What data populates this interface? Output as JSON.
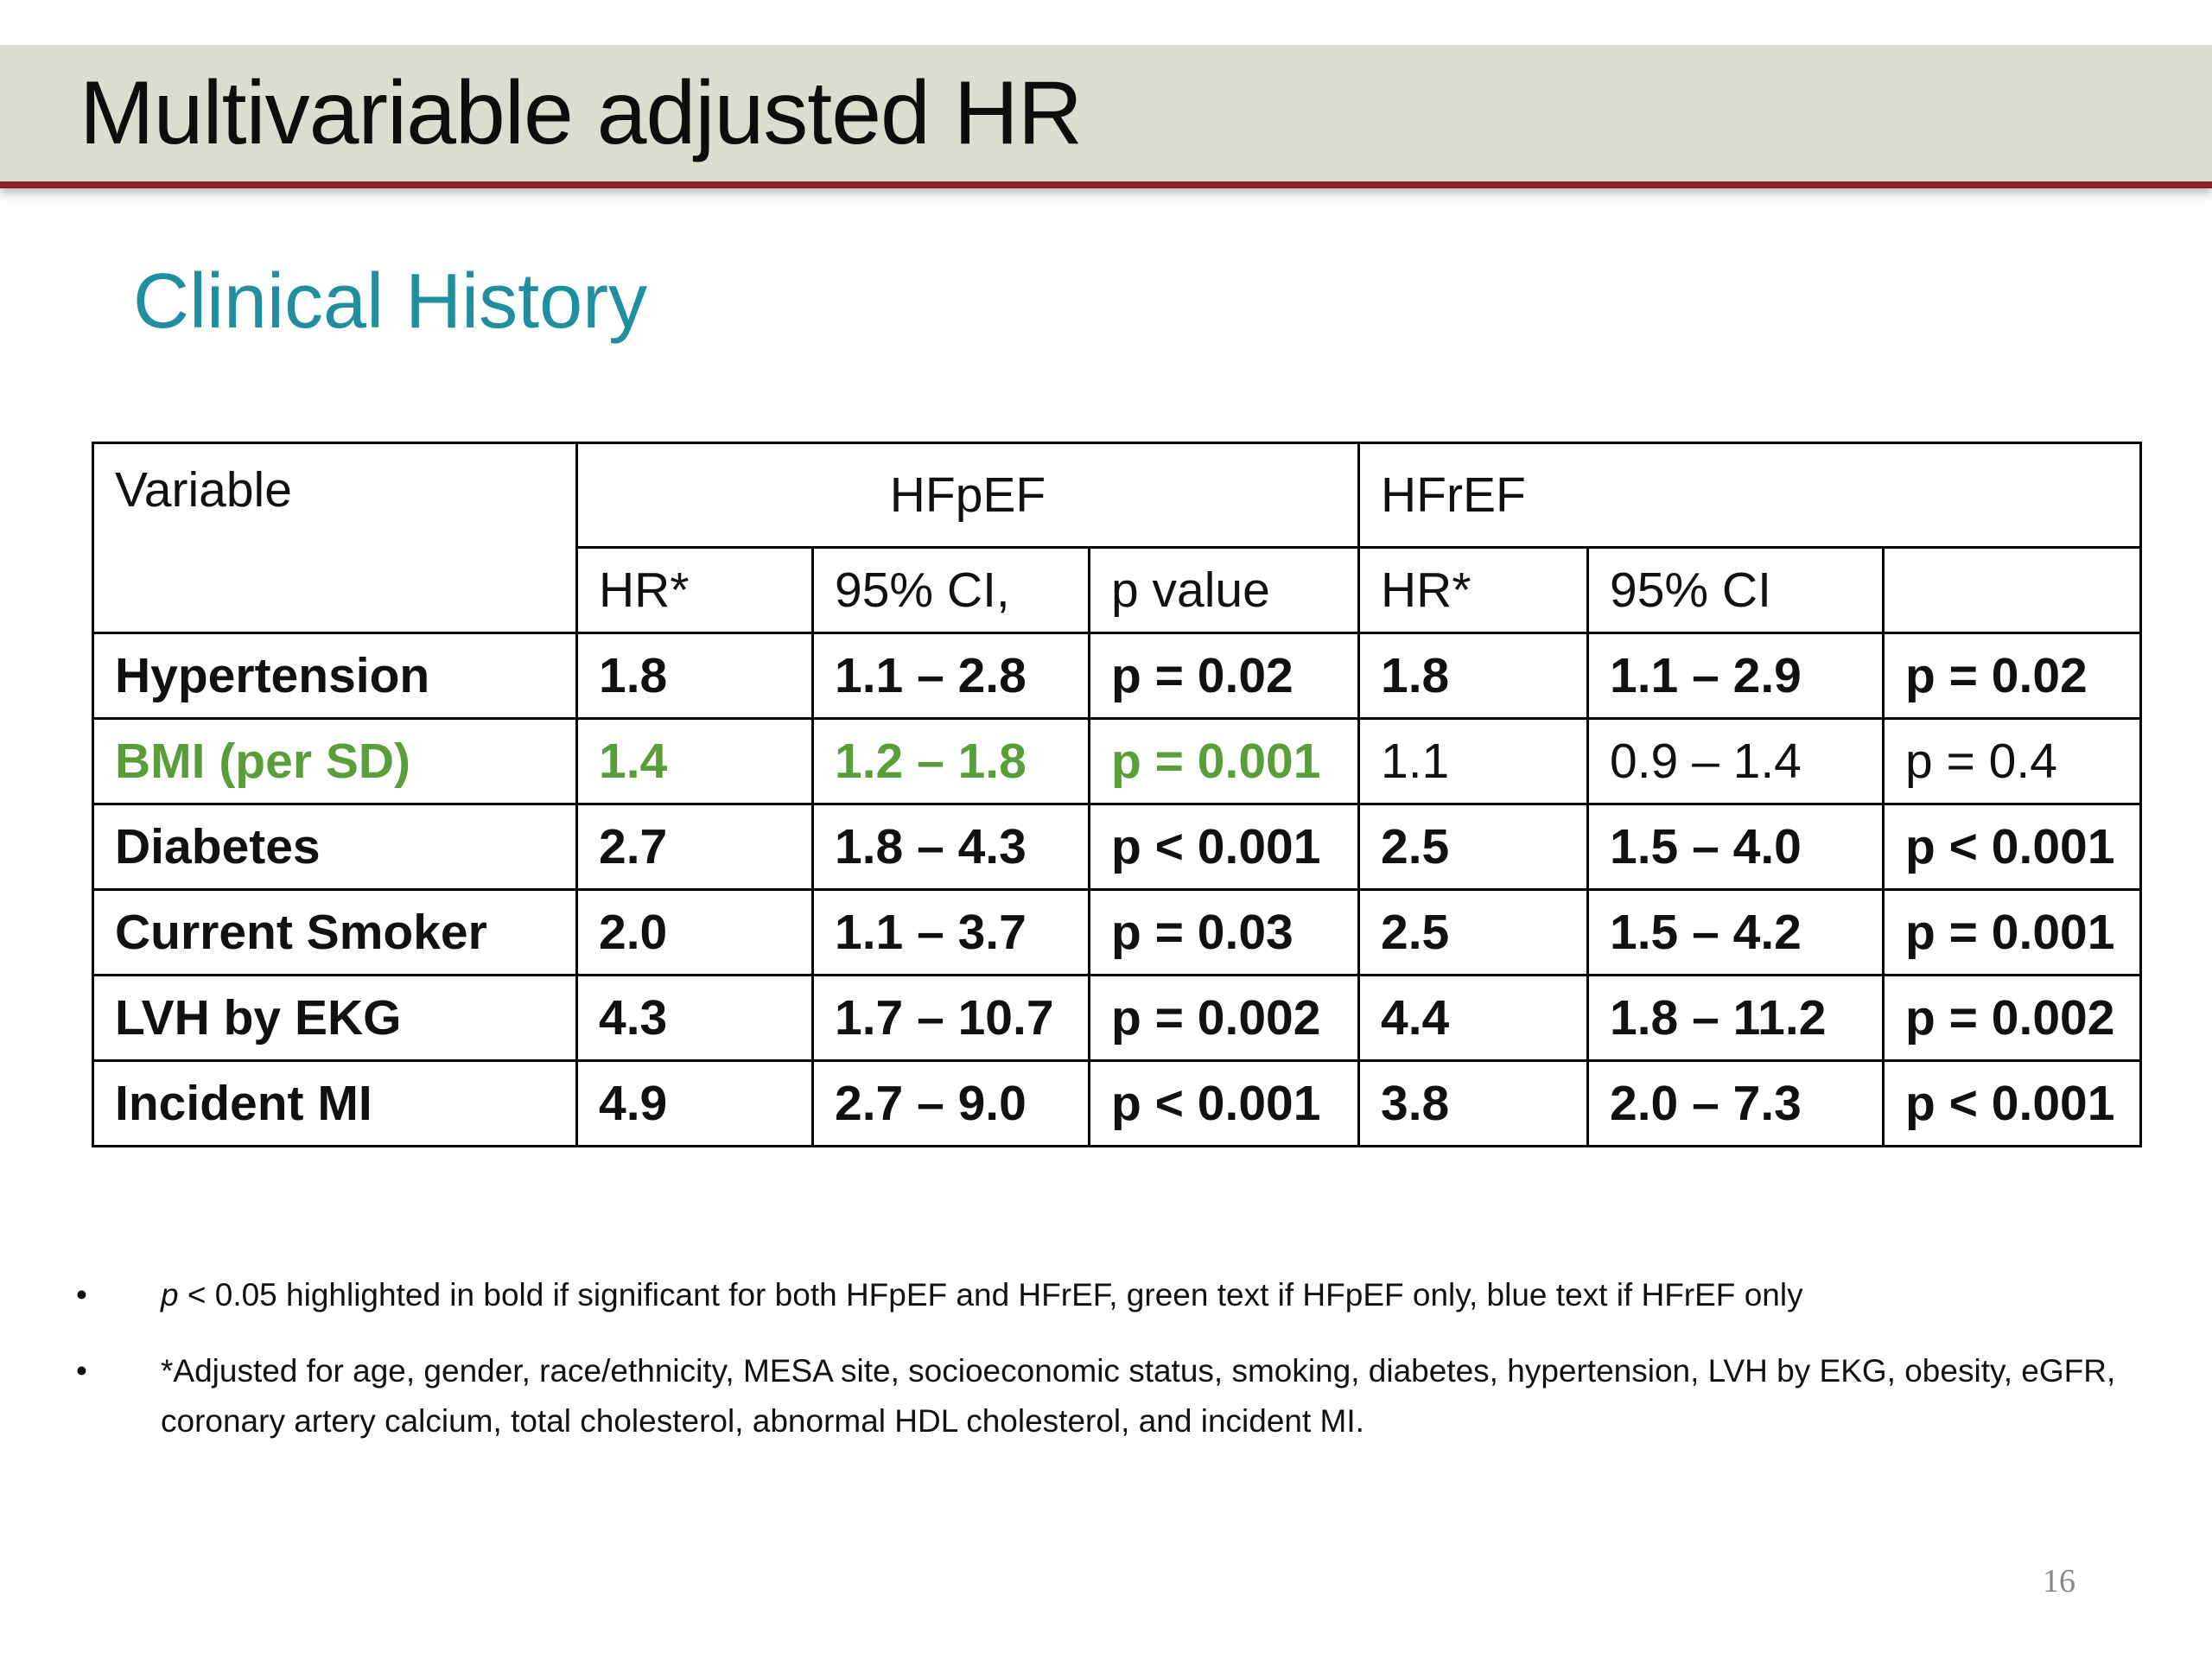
{
  "slide": {
    "title": "Multivariable adjusted HR",
    "subtitle": "Clinical History",
    "page_number": "16"
  },
  "table": {
    "header": {
      "variable": "Variable",
      "hfpef": "HFpEF",
      "hfref": "HFrEF",
      "hfpef_hr": "HR*",
      "hfpef_ci": "95% CI,",
      "hfpef_p": "p value",
      "hfref_hr": "HR*",
      "hfref_ci": "95% CI",
      "hfref_p": ""
    },
    "rows": [
      {
        "variable": "Hypertension",
        "hfpef_hr": "1.8",
        "hfpef_ci": "1.1 – 2.8",
        "hfpef_p": "p = 0.02",
        "hfref_hr": "1.8",
        "hfref_ci": "1.1 – 2.9",
        "hfref_p": "p = 0.02",
        "highlight": "both"
      },
      {
        "variable": "BMI (per SD)",
        "hfpef_hr": "1.4",
        "hfpef_ci": "1.2 – 1.8",
        "hfpef_p": "p = 0.001",
        "hfref_hr": "1.1",
        "hfref_ci": "0.9 – 1.4",
        "hfref_p": "p = 0.4",
        "highlight": "hfpef-only"
      },
      {
        "variable": "Diabetes",
        "hfpef_hr": "2.7",
        "hfpef_ci": "1.8 – 4.3",
        "hfpef_p": "p < 0.001",
        "hfref_hr": "2.5",
        "hfref_ci": "1.5 – 4.0",
        "hfref_p": "p < 0.001",
        "highlight": "both"
      },
      {
        "variable": "Current Smoker",
        "hfpef_hr": "2.0",
        "hfpef_ci": "1.1 – 3.7",
        "hfpef_p": "p = 0.03",
        "hfref_hr": "2.5",
        "hfref_ci": "1.5 – 4.2",
        "hfref_p": "p = 0.001",
        "highlight": "both"
      },
      {
        "variable": "LVH by EKG",
        "hfpef_hr": "4.3",
        "hfpef_ci": "1.7 – 10.7",
        "hfpef_p": "p = 0.002",
        "hfref_hr": "4.4",
        "hfref_ci": "1.8 – 11.2",
        "hfref_p": "p = 0.002",
        "highlight": "both"
      },
      {
        "variable": "Incident MI",
        "hfpef_hr": "4.9",
        "hfpef_ci": "2.7 – 9.0",
        "hfpef_p": "p < 0.001",
        "hfref_hr": "3.8",
        "hfref_ci": "2.0 – 7.3",
        "hfref_p": "p < 0.001",
        "highlight": "both"
      }
    ]
  },
  "notes": {
    "bullet": "•",
    "note1_p": "p",
    "note1_text": " < 0.05 highlighted in bold if significant for both HFpEF and HFrEF, green text if HFpEF only, blue text if HFrEF only",
    "note2_text": "*Adjusted for age, gender, race/ethnicity, MESA site, socioeconomic status, smoking, diabetes, hypertension, LVH by EKG, obesity, eGFR, coronary artery calcium, total cholesterol, abnormal HDL cholesterol, and incident MI."
  },
  "colors": {
    "title_bar": "#dcddd0",
    "title_rule": "#8a1f2c",
    "subtitle": "#1f8fa0",
    "hfpef_only_green": "#5a9e3a",
    "page_number": "#888888"
  }
}
